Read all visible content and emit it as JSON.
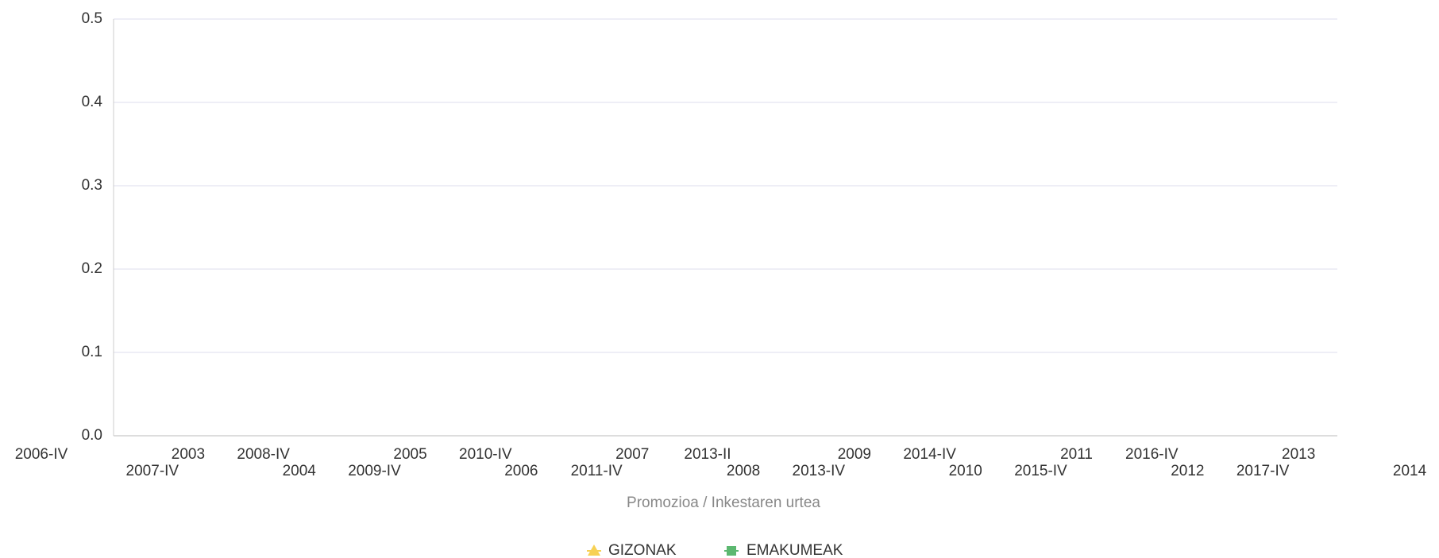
{
  "chart_data": {
    "type": "line",
    "x_label": "Promozioa / Inkestaren urtea",
    "categories": [
      "2003",
      "2004",
      "2005",
      "2006",
      "2007",
      "2008",
      "2009",
      "2010",
      "2011",
      "2012",
      "2013",
      "2014"
    ],
    "survey_years": [
      "2006-IV",
      "2007-IV",
      "2008-IV",
      "2009-IV",
      "2010-IV",
      "2011-IV",
      "2013-II",
      "2013-IV",
      "2014-IV",
      "2015-IV",
      "2016-IV",
      "2017-IV"
    ],
    "series": [
      {
        "name": "GIZONAK",
        "color": "#f7d154",
        "values": [
          null,
          null,
          null,
          null,
          null,
          null,
          null,
          null,
          null,
          null,
          null,
          null
        ]
      },
      {
        "name": "EMAKUMEAK",
        "color": "#5cb870",
        "values": [
          null,
          null,
          null,
          null,
          null,
          null,
          null,
          null,
          null,
          null,
          null,
          null
        ]
      }
    ],
    "ylim": [
      0,
      0.5
    ],
    "yticks": [
      {
        "value": 0,
        "label": "0.0"
      },
      0.1,
      0.2,
      0.3,
      0.4,
      0.5
    ],
    "grid": true,
    "legend": "bottom"
  }
}
